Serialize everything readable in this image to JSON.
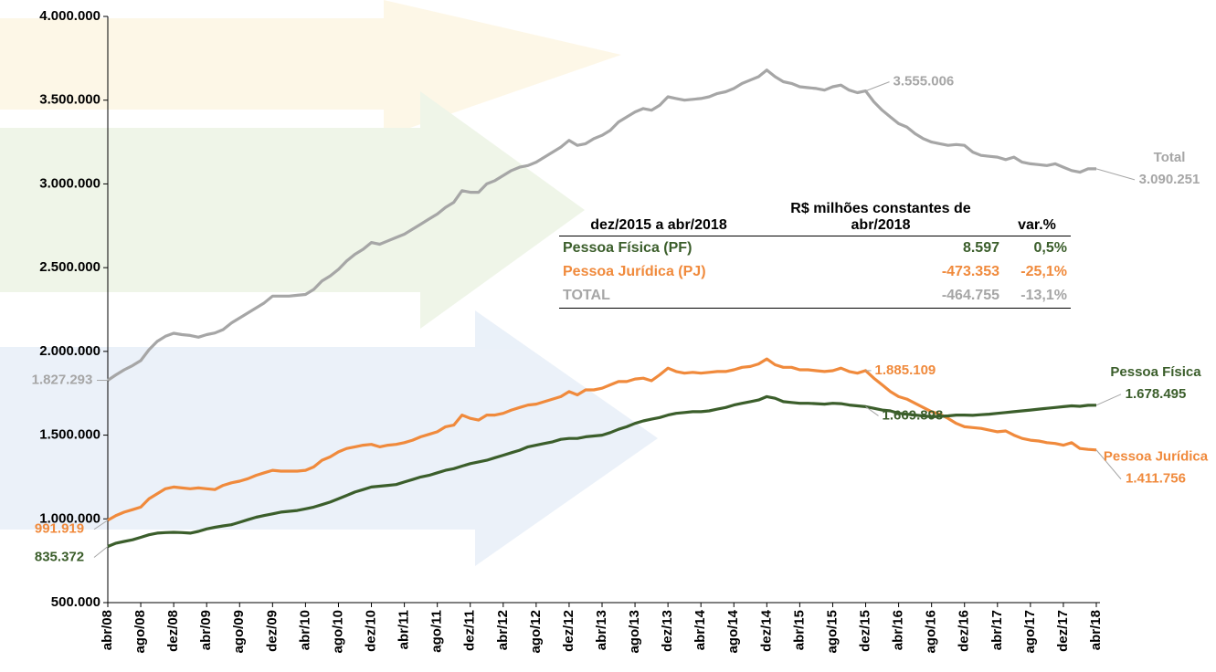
{
  "chart_data": {
    "type": "line",
    "categories": [
      "abr/08",
      null,
      null,
      null,
      "ago/08",
      null,
      null,
      null,
      "dez/08",
      null,
      null,
      null,
      "abr/09",
      null,
      null,
      null,
      "ago/09",
      null,
      null,
      null,
      "dez/09",
      null,
      null,
      null,
      "abr/10",
      null,
      null,
      null,
      "ago/10",
      null,
      null,
      null,
      "dez/10",
      null,
      null,
      null,
      "abr/11",
      null,
      null,
      null,
      "ago/11",
      null,
      null,
      null,
      "dez/11",
      null,
      null,
      null,
      "abr/12",
      null,
      null,
      null,
      "ago/12",
      null,
      null,
      null,
      "dez/12",
      null,
      null,
      null,
      "abr/13",
      null,
      null,
      null,
      "ago/13",
      null,
      null,
      null,
      "dez/13",
      null,
      null,
      null,
      "abr/14",
      null,
      null,
      null,
      "ago/14",
      null,
      null,
      null,
      "dez/14",
      null,
      null,
      null,
      "abr/15",
      null,
      null,
      null,
      "ago/15",
      null,
      null,
      null,
      "dez/15",
      null,
      null,
      null,
      "abr/16",
      null,
      null,
      null,
      "ago/16",
      null,
      null,
      null,
      "dez/16",
      null,
      null,
      null,
      "abr/17",
      null,
      null,
      null,
      "ago/17",
      null,
      null,
      null,
      "dez/17",
      null,
      null,
      null,
      "abr/18"
    ],
    "series": [
      {
        "name": "Total",
        "color": "#a6a6a6",
        "values": [
          1827293,
          1860000,
          1890000,
          1915000,
          1945000,
          2010000,
          2060000,
          2090000,
          2108000,
          2100000,
          2095000,
          2085000,
          2100000,
          2110000,
          2130000,
          2170000,
          2200000,
          2230000,
          2260000,
          2290000,
          2330000,
          2330000,
          2330000,
          2335000,
          2340000,
          2370000,
          2420000,
          2450000,
          2490000,
          2540000,
          2580000,
          2610000,
          2650000,
          2640000,
          2660000,
          2680000,
          2700000,
          2730000,
          2760000,
          2790000,
          2820000,
          2860000,
          2890000,
          2960000,
          2950000,
          2950000,
          3000000,
          3020000,
          3050000,
          3080000,
          3100000,
          3110000,
          3130000,
          3160000,
          3190000,
          3220000,
          3260000,
          3230000,
          3240000,
          3270000,
          3290000,
          3320000,
          3370000,
          3400000,
          3430000,
          3450000,
          3440000,
          3470000,
          3520000,
          3510000,
          3500000,
          3505000,
          3510000,
          3520000,
          3540000,
          3550000,
          3570000,
          3600000,
          3620000,
          3640000,
          3680000,
          3640000,
          3610000,
          3600000,
          3580000,
          3575000,
          3570000,
          3560000,
          3580000,
          3590000,
          3560000,
          3545000,
          3555006,
          3490000,
          3440000,
          3400000,
          3360000,
          3340000,
          3300000,
          3270000,
          3250000,
          3240000,
          3230000,
          3235000,
          3230000,
          3190000,
          3170000,
          3165000,
          3160000,
          3145000,
          3160000,
          3130000,
          3120000,
          3115000,
          3110000,
          3120000,
          3100000,
          3080000,
          3070000,
          3090000,
          3090251
        ],
        "value_labels": {
          "0": "1.827.293",
          "92": "3.555.006",
          "120": "3.090.251"
        }
      },
      {
        "name": "Pessoa Jurídica",
        "color": "#f08a3c",
        "values": [
          991919,
          1020000,
          1040000,
          1055000,
          1070000,
          1120000,
          1150000,
          1180000,
          1190000,
          1185000,
          1180000,
          1185000,
          1180000,
          1175000,
          1200000,
          1215000,
          1225000,
          1240000,
          1260000,
          1275000,
          1290000,
          1285000,
          1285000,
          1285000,
          1290000,
          1310000,
          1350000,
          1370000,
          1400000,
          1420000,
          1430000,
          1440000,
          1445000,
          1430000,
          1440000,
          1445000,
          1455000,
          1470000,
          1490000,
          1505000,
          1520000,
          1550000,
          1560000,
          1620000,
          1600000,
          1590000,
          1620000,
          1620000,
          1630000,
          1650000,
          1665000,
          1680000,
          1685000,
          1700000,
          1715000,
          1730000,
          1760000,
          1740000,
          1770000,
          1770000,
          1780000,
          1800000,
          1820000,
          1820000,
          1835000,
          1840000,
          1825000,
          1860000,
          1900000,
          1880000,
          1870000,
          1875000,
          1870000,
          1875000,
          1880000,
          1880000,
          1890000,
          1905000,
          1910000,
          1925000,
          1955000,
          1920000,
          1905000,
          1905000,
          1890000,
          1890000,
          1885000,
          1880000,
          1885000,
          1900000,
          1880000,
          1870000,
          1885109,
          1840000,
          1800000,
          1760000,
          1730000,
          1715000,
          1690000,
          1665000,
          1640000,
          1625000,
          1600000,
          1570000,
          1550000,
          1545000,
          1540000,
          1530000,
          1520000,
          1525000,
          1500000,
          1480000,
          1470000,
          1465000,
          1455000,
          1450000,
          1440000,
          1455000,
          1420000,
          1415000,
          1411756
        ],
        "value_labels": {
          "0": "991.919",
          "92": "1.885.109",
          "120": "1.411.756"
        }
      },
      {
        "name": "Pessoa Física",
        "color": "#3b5e2b",
        "values": [
          835372,
          855000,
          865000,
          875000,
          890000,
          905000,
          915000,
          918000,
          920000,
          918000,
          915000,
          925000,
          940000,
          950000,
          958000,
          965000,
          980000,
          995000,
          1010000,
          1020000,
          1030000,
          1040000,
          1045000,
          1050000,
          1060000,
          1070000,
          1085000,
          1100000,
          1120000,
          1140000,
          1160000,
          1175000,
          1190000,
          1195000,
          1200000,
          1205000,
          1220000,
          1235000,
          1250000,
          1260000,
          1275000,
          1290000,
          1300000,
          1315000,
          1330000,
          1340000,
          1350000,
          1365000,
          1380000,
          1395000,
          1410000,
          1430000,
          1440000,
          1450000,
          1460000,
          1475000,
          1480000,
          1480000,
          1490000,
          1495000,
          1500000,
          1515000,
          1535000,
          1550000,
          1570000,
          1585000,
          1595000,
          1605000,
          1620000,
          1630000,
          1635000,
          1640000,
          1640000,
          1645000,
          1655000,
          1665000,
          1680000,
          1690000,
          1700000,
          1710000,
          1730000,
          1720000,
          1700000,
          1695000,
          1690000,
          1690000,
          1688000,
          1685000,
          1690000,
          1688000,
          1680000,
          1675000,
          1669898,
          1660000,
          1650000,
          1645000,
          1630000,
          1625000,
          1620000,
          1615000,
          1610000,
          1612000,
          1615000,
          1620000,
          1620000,
          1618000,
          1622000,
          1625000,
          1630000,
          1635000,
          1640000,
          1645000,
          1650000,
          1655000,
          1660000,
          1665000,
          1670000,
          1675000,
          1672000,
          1678000,
          1678495
        ],
        "value_labels": {
          "0": "835.372",
          "92": "1.669.898",
          "120": "1.678.495"
        }
      }
    ],
    "ylim": [
      500000,
      4000000
    ],
    "yticks": [
      {
        "value": 500000,
        "label": "500.000"
      },
      {
        "value": 1000000,
        "label": "1.000.000"
      },
      {
        "value": 1500000,
        "label": "1.500.000"
      },
      {
        "value": 2000000,
        "label": "2.000.000"
      },
      {
        "value": 2500000,
        "label": "2.500.000"
      },
      {
        "value": 3000000,
        "label": "3.000.000"
      },
      {
        "value": 3500000,
        "label": "3.500.000"
      },
      {
        "value": 4000000,
        "label": "4.000.000"
      }
    ],
    "grid": false
  },
  "table": {
    "header": [
      "dez/2015 a abr/2018",
      "R$ milhões constantes de abr/2018",
      "var.%"
    ],
    "rows": [
      {
        "color": "#3b5e2b",
        "cells": [
          "Pessoa Física (PF)",
          "8.597",
          "0,5%"
        ]
      },
      {
        "color": "#f08a3c",
        "cells": [
          "Pessoa Jurídica (PJ)",
          "-473.353",
          "-25,1%"
        ]
      },
      {
        "color": "#a6a6a6",
        "cells": [
          "TOTAL",
          "-464.755",
          "-13,1%"
        ]
      }
    ]
  }
}
